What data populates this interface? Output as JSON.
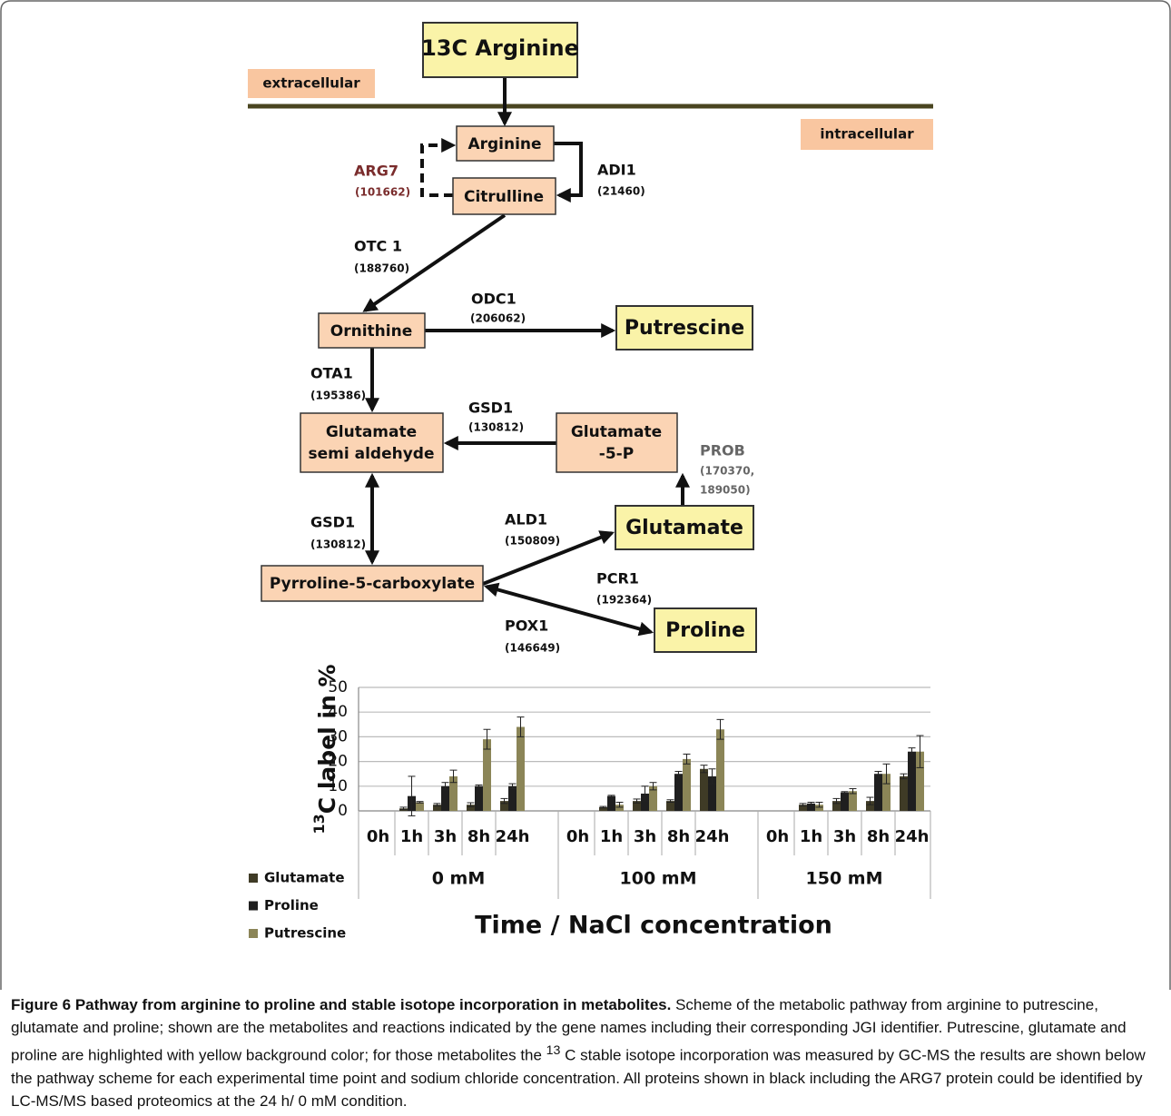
{
  "diagram": {
    "nodes": [
      "13C Arginine",
      "Arginine",
      "Citrulline",
      "Ornithine",
      "Putrescine",
      [
        "Glutamate",
        "semi aldehyde"
      ],
      [
        "Glutamate",
        "-5-P"
      ],
      "Glutamate",
      "Pyrroline-5-carboxylate",
      "Proline"
    ],
    "compartments": [
      "extracellular",
      "intracellular"
    ],
    "enzymes": [
      {
        "name": "ARG7",
        "id": [
          "(101662)"
        ]
      },
      {
        "name": "ADI1",
        "id": [
          "(21460)"
        ]
      },
      {
        "name": "OTC 1",
        "id": [
          "(188760)"
        ]
      },
      {
        "name": "ODC1",
        "id": [
          "(206062)"
        ]
      },
      {
        "name": "OTA1",
        "id": [
          "(195386)"
        ]
      },
      {
        "name": "GSD1",
        "id": [
          "(130812)"
        ]
      },
      {
        "name": "PROB",
        "id": [
          "(170370,",
          "189050)"
        ]
      },
      {
        "name": "GSD1",
        "id": [
          "(130812)"
        ]
      },
      {
        "name": "ALD1",
        "id": [
          "(150809)"
        ]
      },
      {
        "name": "PCR1",
        "id": [
          "(192364)"
        ]
      },
      {
        "name": "POX1",
        "id": [
          "(146649)"
        ]
      }
    ]
  },
  "chart_data": {
    "type": "bar",
    "ylabel_sup": "13",
    "ylabel": "C label in %",
    "xlabel": "Time / NaCl concentration",
    "groups": [
      {
        "label": "0 mM",
        "categories": [
          "0h",
          "1h",
          "3h",
          "8h",
          "24h"
        ]
      },
      {
        "label": "100 mM",
        "categories": [
          "0h",
          "1h",
          "3h",
          "8h",
          "24h"
        ]
      },
      {
        "label": "150 mM",
        "categories": [
          "0h",
          "1h",
          "3h",
          "8h",
          "24h"
        ]
      }
    ],
    "series": [
      {
        "name": "Glutamate",
        "color": "#3f3b26",
        "values": [
          0,
          1,
          2.5,
          2.5,
          4,
          0,
          1.5,
          4,
          4,
          17,
          0,
          2.5,
          4,
          4,
          14
        ],
        "errors": [
          0,
          0.5,
          0.5,
          0.8,
          1,
          0,
          0.3,
          0.8,
          0.5,
          1.5,
          0,
          0.5,
          1,
          1.5,
          1
        ]
      },
      {
        "name": "Proline",
        "color": "#1f1f1f",
        "values": [
          0,
          6,
          10,
          10,
          10,
          0,
          6,
          7,
          15,
          14,
          0,
          3,
          7.5,
          15,
          24
        ],
        "errors": [
          0,
          8,
          1.5,
          0.5,
          1,
          0,
          0.3,
          3,
          1,
          3,
          0,
          0.5,
          0.3,
          1,
          1.5
        ]
      },
      {
        "name": "Putrescine",
        "color": "#8b8557",
        "values": [
          0,
          3.5,
          14,
          29,
          34,
          0,
          2.5,
          10,
          21,
          33,
          0,
          2.5,
          8,
          15,
          24
        ],
        "errors": [
          0,
          0.3,
          2.5,
          4,
          4,
          0,
          1,
          1.5,
          2,
          4,
          0,
          1,
          1,
          4,
          6.5
        ]
      }
    ],
    "ylim": [
      0,
      50
    ],
    "yticks": [
      0,
      10,
      20,
      30,
      40,
      50
    ],
    "grid": true
  },
  "caption": {
    "title": "Figure 6 Pathway from arginine to proline and stable isotope incorporation in metabolites.",
    "body": [
      "Scheme of the metabolic pathway from arginine to putrescine, glutamate and proline; shown are the metabolites and reactions indicated by the gene names including their corresponding JGI identifier. Putrescine, glutamate and proline are highlighted with yellow background color; for those metabolites the ",
      "13",
      " C stable isotope incorporation was measured by GC-MS the results are shown below the pathway scheme for each experimental time point and sodium chloride concentration. All proteins shown in black including the ARG7 protein could be identified by LC-MS/MS based proteomics at the 24 h/ 0 mM condition."
    ]
  }
}
